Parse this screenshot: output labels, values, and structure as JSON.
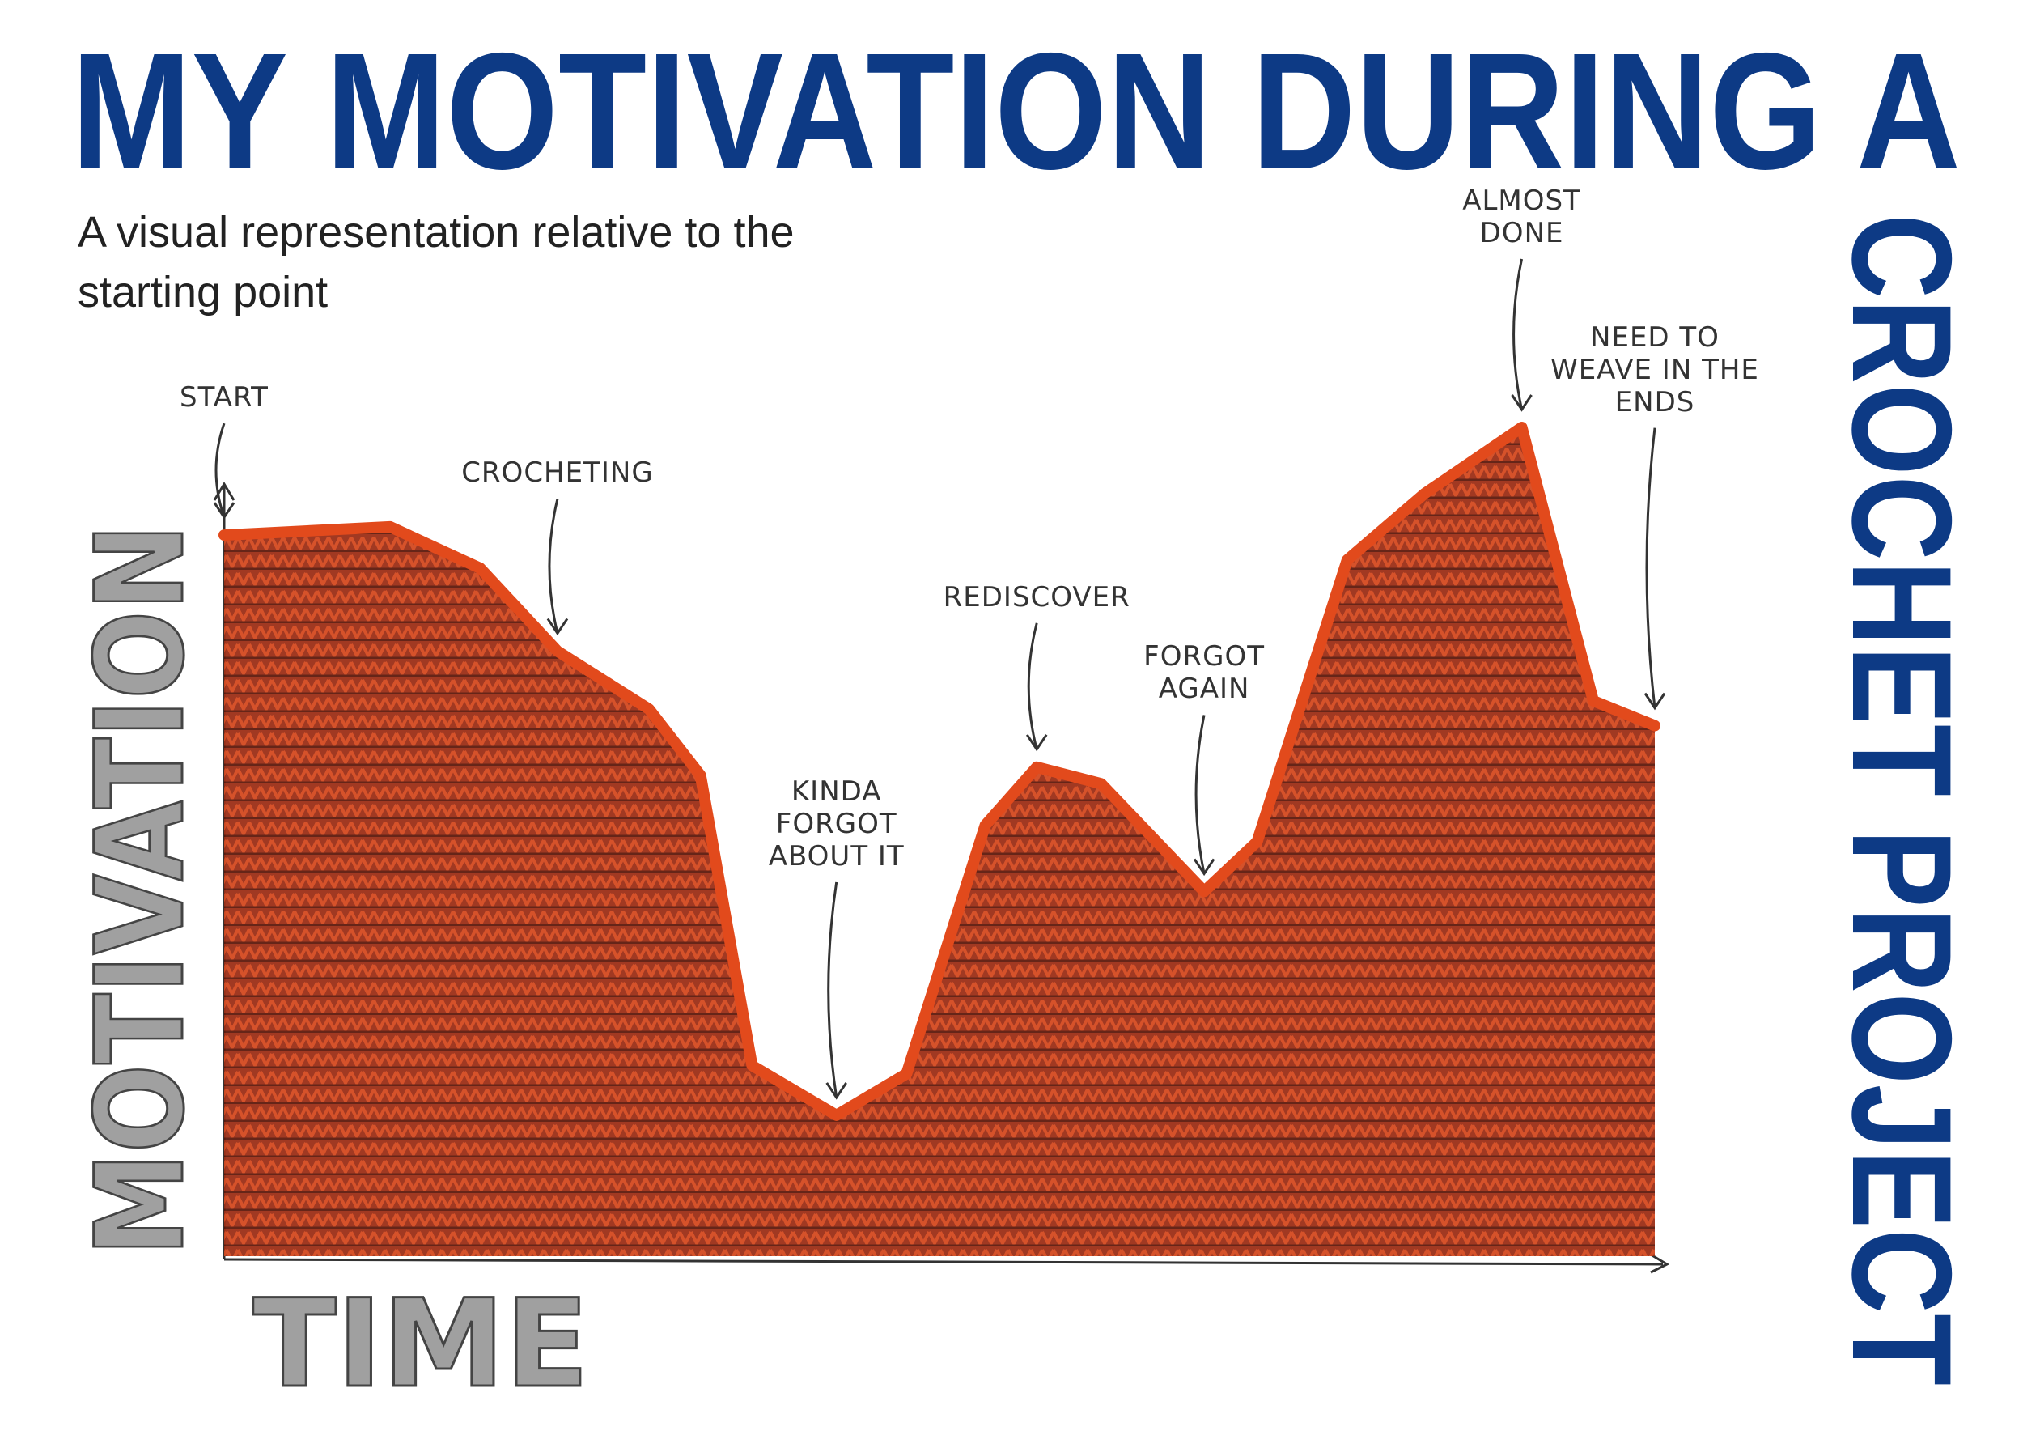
{
  "chart_data": {
    "type": "area",
    "title_lines": [
      "MY MOTIVATION DURING A",
      "CROCHET PROJECT"
    ],
    "subtitle": "A visual representation relative to the starting point",
    "x_label": "TIME",
    "y_label": "MOTIVATION",
    "x": [
      0,
      11.6,
      17.9,
      23.3,
      29.7,
      33.3,
      36.9,
      42.8,
      47.7,
      53.2,
      56.8,
      61.3,
      68.5,
      72.2,
      78.5,
      83.9,
      90.7,
      95.7,
      100
    ],
    "values": [
      87,
      88,
      83,
      73,
      66,
      58,
      23,
      17,
      22,
      52,
      59,
      57,
      44,
      50,
      84,
      92,
      100,
      67,
      64
    ],
    "point_labels": [
      "START",
      null,
      null,
      "CROCHETING",
      null,
      null,
      null,
      "KINDA FORGOT ABOUT IT",
      null,
      null,
      "REDISCOVER",
      null,
      "FORGOT AGAIN",
      null,
      null,
      null,
      "ALMOST DONE",
      null,
      "NEED TO WEAVE IN THE ENDS"
    ],
    "color": "#a8361a",
    "edge_color": "#e24a1c",
    "title_color": "#0d3a85",
    "xlim": [
      0,
      100
    ],
    "ylim": [
      0,
      100
    ]
  }
}
